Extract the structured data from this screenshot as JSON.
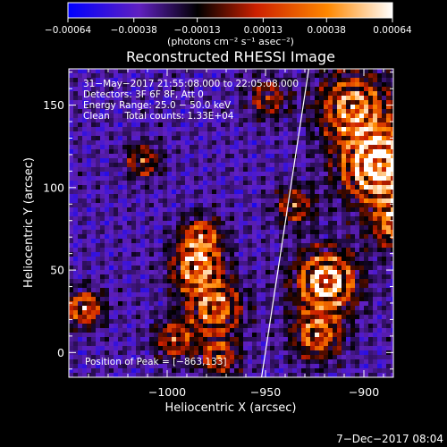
{
  "chart_data": {
    "type": "heatmap",
    "title": "Reconstructed RHESSI Image",
    "xlabel": "Heliocentric X (arcsec)",
    "ylabel": "Heliocentric Y (arcsec)",
    "xlim": [
      -1050,
      -885
    ],
    "ylim": [
      -15,
      172
    ],
    "xticks": [
      -1000,
      -950,
      -900
    ],
    "yticks": [
      0,
      50,
      100,
      150
    ],
    "xtick_labels": [
      "−1000",
      "−950",
      "−900"
    ],
    "ytick_labels": [
      "0",
      "50",
      "100",
      "150"
    ],
    "colorbar": {
      "ticks": [
        -0.00064,
        -0.00038,
        -0.00013,
        0.00013,
        0.00038,
        0.00064
      ],
      "tick_labels": [
        "−0.00064",
        "−0.00038",
        "−0.00013",
        "0.00013",
        "0.00038",
        "0.00064"
      ],
      "unit_label": "(photons cm⁻² s⁻¹ asec⁻²)",
      "colormap": [
        "#0000ff",
        "#6020c0",
        "#000000",
        "#cc2000",
        "#ff8800",
        "#ffffff"
      ]
    },
    "annotations": [
      "31−May−2017 21:55:08.000 to 22:05:08.000",
      "Detectors: 3F 6F 8F, Att 0",
      "Energy Range: 25.0 − 50.0 keV",
      "Clean     Total counts: 1.33E+04"
    ],
    "peak_label": "Position of Peak = [−863,133]",
    "limb_line": {
      "x": [
        -952,
        -928
      ],
      "y": [
        -15,
        172
      ]
    }
  },
  "footer": {
    "date": "7−Dec−2017 08:04"
  }
}
